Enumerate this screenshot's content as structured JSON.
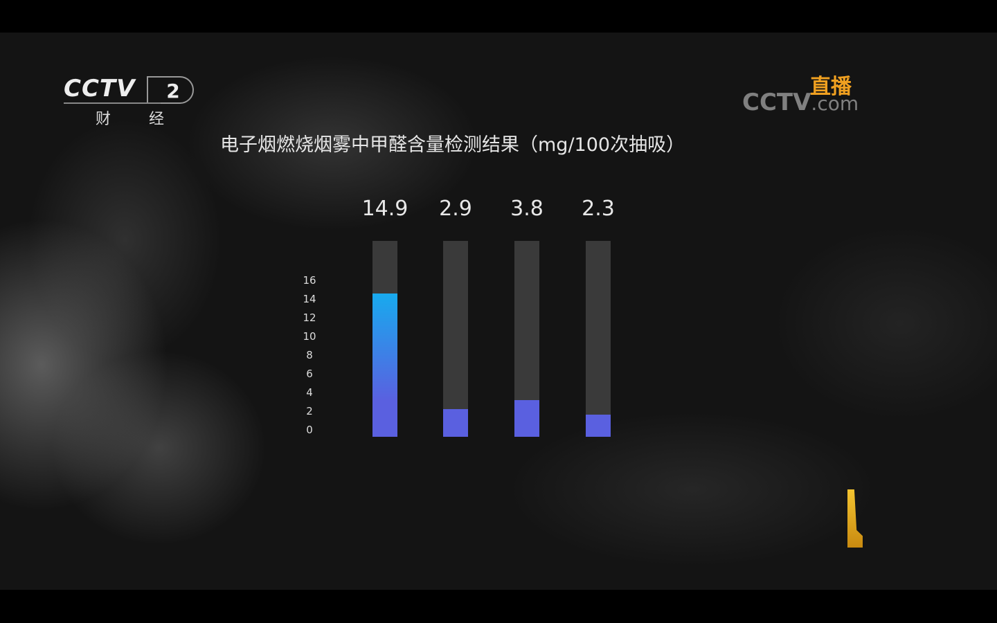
{
  "channel_logo": {
    "brand": "CCTV",
    "number": "2",
    "name": "财 经"
  },
  "watermark": {
    "brand": "CCTV",
    "domain": ".com",
    "live_label": "直播"
  },
  "chart_data": {
    "type": "bar",
    "title": "电子烟燃烧烟雾中甲醛含量检测结果（mg/100次抽吸）",
    "categories": [
      "",
      "",
      "",
      ""
    ],
    "values": [
      14.9,
      2.9,
      3.8,
      2.3
    ],
    "value_labels": [
      "14.9",
      "2.9",
      "3.8",
      "2.3"
    ],
    "yticks": [
      "0",
      "2",
      "4",
      "6",
      "8",
      "10",
      "12",
      "14",
      "16"
    ],
    "ylim": [
      0,
      20
    ],
    "grid": false,
    "colors": {
      "bar_top_first": "#18aaee",
      "bar": "#5a60e0",
      "track": "#3a3a3a"
    }
  }
}
